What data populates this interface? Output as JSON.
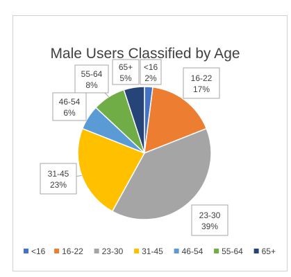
{
  "chart_data": {
    "type": "pie",
    "title": "Male Users Classified by Age",
    "legend_position": "bottom",
    "slices": [
      {
        "label": "<16",
        "value": 2,
        "pct_label": "2%",
        "color": "#4472C4"
      },
      {
        "label": "16-22",
        "value": 17,
        "pct_label": "17%",
        "color": "#ED7D31"
      },
      {
        "label": "23-30",
        "value": 39,
        "pct_label": "39%",
        "color": "#A5A5A5"
      },
      {
        "label": "31-45",
        "value": 23,
        "pct_label": "23%",
        "color": "#FFC000"
      },
      {
        "label": "46-54",
        "value": 6,
        "pct_label": "6%",
        "color": "#5B9BD5"
      },
      {
        "label": "55-64",
        "value": 8,
        "pct_label": "8%",
        "color": "#70AD47"
      },
      {
        "label": "65+",
        "value": 5,
        "pct_label": "5%",
        "color": "#264478"
      }
    ]
  }
}
